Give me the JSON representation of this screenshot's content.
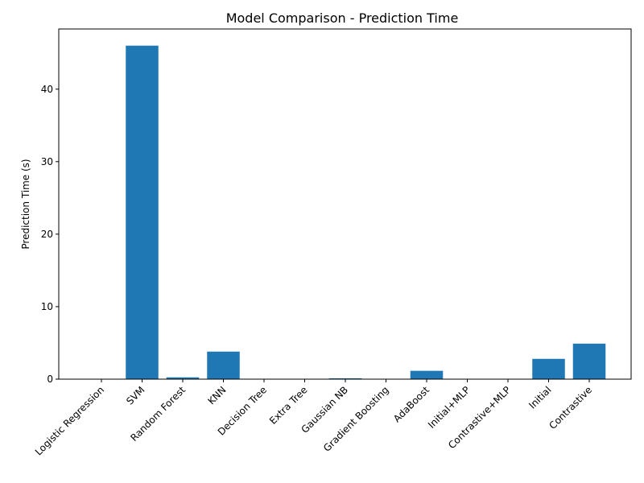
{
  "chart_data": {
    "type": "bar",
    "title": "Model Comparison - Prediction Time",
    "xlabel": "",
    "ylabel": "Prediction Time (s)",
    "categories": [
      "Logistic Regression",
      "SVM",
      "Random Forest",
      "KNN",
      "Decision Tree",
      "Extra Tree",
      "Gaussian NB",
      "Gradient Boosting",
      "AdaBoost",
      "Initial+MLP",
      "Contrastive+MLP",
      "Initial",
      "Contrastive"
    ],
    "values": [
      0.01,
      46.0,
      0.25,
      3.8,
      0.01,
      0.01,
      0.12,
      0.02,
      1.15,
      0.01,
      0.01,
      2.8,
      4.9
    ],
    "yticks": [
      0,
      10,
      20,
      30,
      40
    ],
    "ylim": [
      0,
      48.3
    ],
    "bar_color": "#1f77b4",
    "grid": false,
    "legend": "none"
  }
}
